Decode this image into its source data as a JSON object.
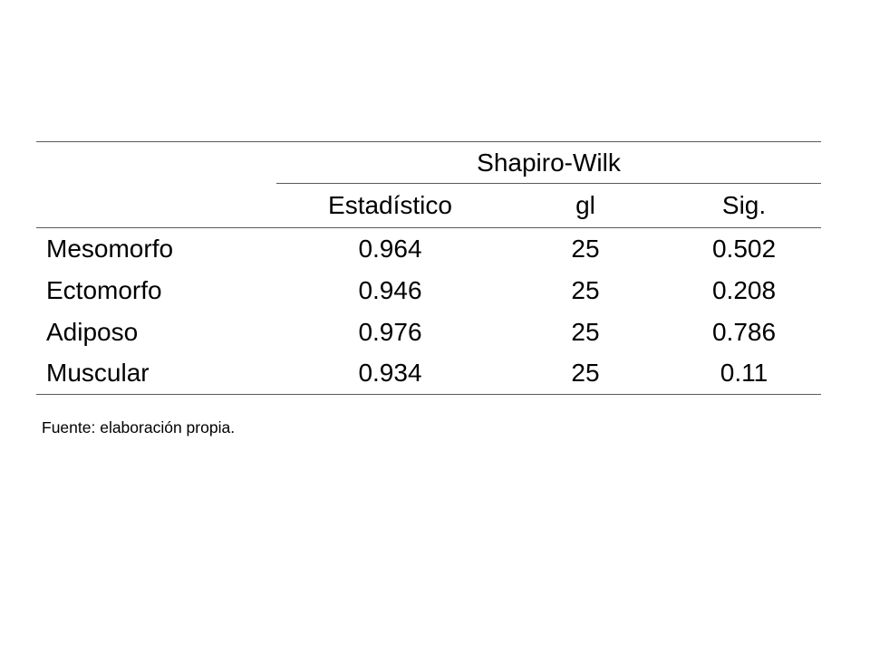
{
  "table": {
    "group_header": "Shapiro-Wilk",
    "columns": [
      "Estadístico",
      "gl",
      "Sig."
    ],
    "rows": [
      {
        "label": "Mesomorfo",
        "estadistico": "0.964",
        "gl": "25",
        "sig": "0.502"
      },
      {
        "label": "Ectomorfo",
        "estadistico": "0.946",
        "gl": "25",
        "sig": "0.208"
      },
      {
        "label": "Adiposo",
        "estadistico": "0.976",
        "gl": "25",
        "sig": "0.786"
      },
      {
        "label": "Muscular",
        "estadistico": "0.934",
        "gl": "25",
        "sig": "0.11"
      }
    ]
  },
  "footer": {
    "source_note": "Fuente: elaboración propia."
  }
}
